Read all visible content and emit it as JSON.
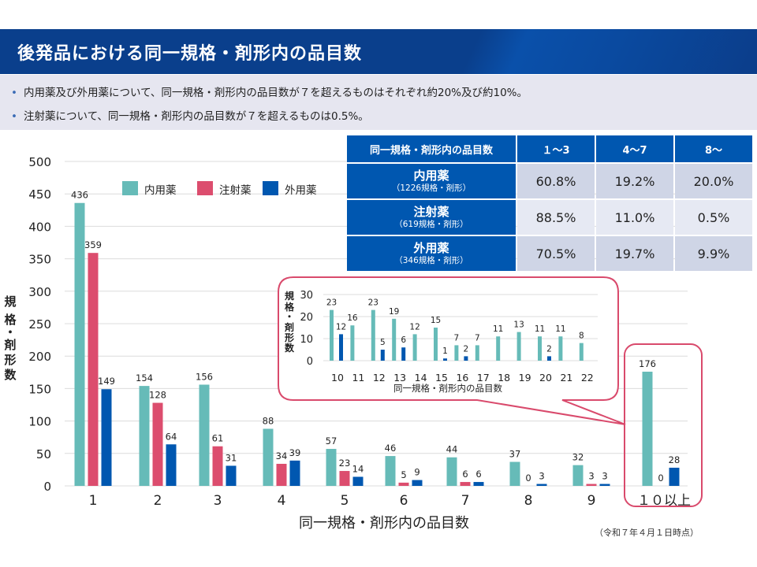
{
  "header": {
    "title": "後発品における同一規格・剤形内の品目数"
  },
  "summary": {
    "bullets": [
      "内用薬及び外用薬について、同一規格・剤形内の品目数が７を超えるものはそれぞれ約20%及び約10%。",
      "注射薬について、同一規格・剤形内の品目数が７を超えるものは0.5%。"
    ]
  },
  "table": {
    "header": [
      "同一規格・剤形内の品目数",
      "１～3",
      "4～7",
      "8～"
    ],
    "rows": [
      {
        "name": "内用薬",
        "sub": "（1226規格・剤形）",
        "values": [
          "60.8%",
          "19.2%",
          "20.0%"
        ]
      },
      {
        "name": "注射薬",
        "sub": "（619規格・剤形）",
        "values": [
          "88.5%",
          "11.0%",
          "0.5%"
        ]
      },
      {
        "name": "外用薬",
        "sub": "（346規格・剤形）",
        "values": [
          "70.5%",
          "19.7%",
          "9.9%"
        ]
      }
    ]
  },
  "footnote": "（令和７年４月１日時点）",
  "colors": {
    "naiyo": "#66bbb8",
    "chusha": "#dc4d6e",
    "gaiyo": "#0057b0",
    "callout": "#d94a6c",
    "grid": "#dcdcdc"
  },
  "chart_data": [
    {
      "type": "bar",
      "title": "",
      "xlabel": "同一規格・剤形内の品目数",
      "ylabel": "規格・剤形数",
      "ylim": [
        0,
        500
      ],
      "yticks": [
        "0",
        "50",
        "100",
        "150",
        "200",
        "250",
        "300",
        "350",
        "400",
        "450",
        "500"
      ],
      "grid": true,
      "legend_position": "top",
      "categories": [
        "1",
        "2",
        "3",
        "4",
        "5",
        "6",
        "7",
        "8",
        "9",
        "１０以上"
      ],
      "series": [
        {
          "name": "内用薬",
          "values": [
            436,
            154,
            156,
            88,
            57,
            46,
            44,
            37,
            32,
            176
          ]
        },
        {
          "name": "注射薬",
          "values": [
            359,
            128,
            61,
            34,
            23,
            5,
            6,
            0,
            3,
            0
          ]
        },
        {
          "name": "外用薬",
          "values": [
            149,
            64,
            31,
            39,
            14,
            9,
            6,
            3,
            3,
            28
          ]
        }
      ]
    },
    {
      "type": "bar",
      "title": "",
      "xlabel": "同一規格・剤形内の品目数",
      "ylabel": "規格・剤形数",
      "ylim": [
        0,
        30
      ],
      "yticks": [
        "0",
        "10",
        "20",
        "30"
      ],
      "grid": true,
      "categories": [
        "10",
        "11",
        "12",
        "13",
        "14",
        "15",
        "16",
        "17",
        "18",
        "19",
        "20",
        "21",
        "22"
      ],
      "series": [
        {
          "name": "内用薬",
          "values": [
            23,
            16,
            23,
            19,
            12,
            15,
            7,
            7,
            11,
            13,
            11,
            11,
            8
          ]
        },
        {
          "name": "外用薬",
          "values": [
            12,
            null,
            5,
            6,
            null,
            1,
            2,
            null,
            null,
            null,
            2,
            null,
            null
          ]
        }
      ]
    }
  ]
}
